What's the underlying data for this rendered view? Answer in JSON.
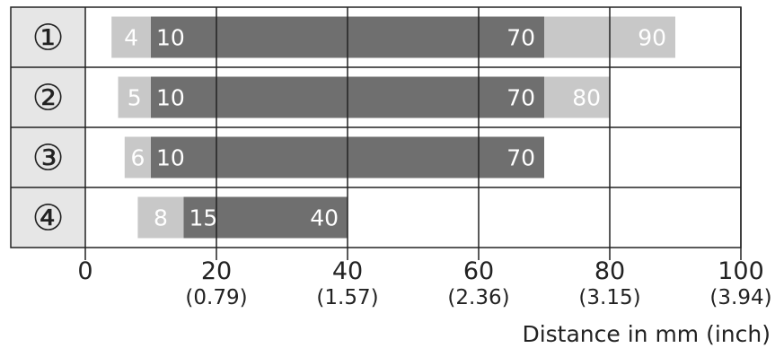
{
  "chart_data": {
    "type": "bar",
    "subtype": "range",
    "xlabel": "Distance in mm (inch)",
    "xlim": [
      0,
      100
    ],
    "x_ticks": [
      {
        "value": 0,
        "label": "0",
        "sub": ""
      },
      {
        "value": 20,
        "label": "20",
        "sub": "(0.79)"
      },
      {
        "value": 40,
        "label": "40",
        "sub": "(1.57)"
      },
      {
        "value": 60,
        "label": "60",
        "sub": "(2.36)"
      },
      {
        "value": 80,
        "label": "80",
        "sub": "(3.15)"
      },
      {
        "value": 100,
        "label": "100",
        "sub": "(3.94)"
      }
    ],
    "grid": true,
    "rows": [
      {
        "label": "①",
        "outer": [
          4,
          90
        ],
        "inner": [
          10,
          70
        ],
        "outer_min_label": "4",
        "inner_min_label": "10",
        "inner_max_label": "70",
        "outer_max_label": "90"
      },
      {
        "label": "②",
        "outer": [
          5,
          80
        ],
        "inner": [
          10,
          70
        ],
        "outer_min_label": "5",
        "inner_min_label": "10",
        "inner_max_label": "70",
        "outer_max_label": "80"
      },
      {
        "label": "③",
        "outer": [
          6,
          70
        ],
        "inner": [
          10,
          70
        ],
        "outer_min_label": "6",
        "inner_min_label": "10",
        "inner_max_label": "70",
        "outer_max_label": ""
      },
      {
        "label": "④",
        "outer": [
          8,
          40
        ],
        "inner": [
          15,
          40
        ],
        "outer_min_label": "8",
        "inner_min_label": "15",
        "inner_max_label": "40",
        "outer_max_label": ""
      }
    ],
    "colors": {
      "outer": "#c8c8c8",
      "inner": "#6f6f6f",
      "label_bg": "#e6e6e6",
      "grid": "#222222",
      "bar_text": "#ffffff",
      "axis_text": "#222222"
    }
  }
}
